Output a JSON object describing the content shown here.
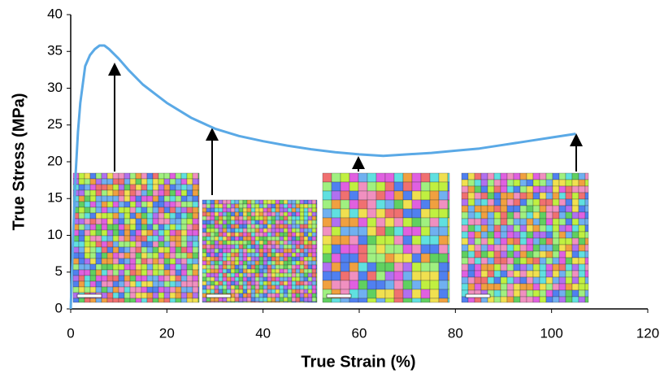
{
  "chart_data": {
    "type": "line",
    "x_label": "True Strain (%)",
    "y_label": "True Stress (MPa)",
    "x": [
      0,
      0.5,
      1,
      1.5,
      2,
      3,
      4,
      5,
      6,
      7,
      8,
      10,
      12,
      15,
      18,
      20,
      25,
      30,
      35,
      40,
      45,
      50,
      55,
      60,
      65,
      70,
      75,
      80,
      85,
      90,
      95,
      100,
      105
    ],
    "values": [
      0,
      10,
      18,
      24,
      28,
      33,
      34.5,
      35.3,
      35.8,
      35.8,
      35.3,
      34,
      32.5,
      30.5,
      29,
      28,
      26,
      24.5,
      23.5,
      22.8,
      22.2,
      21.7,
      21.3,
      21,
      20.8,
      21,
      21.2,
      21.5,
      21.8,
      22.3,
      22.8,
      23.3,
      23.8
    ],
    "color": "#5aa9e6",
    "xlim": [
      0,
      120
    ],
    "xticks": [
      0,
      20,
      40,
      60,
      80,
      100,
      120
    ],
    "ylim": [
      0,
      40
    ],
    "yticks": [
      0,
      5,
      10,
      15,
      20,
      25,
      30,
      35,
      40
    ],
    "grid": false
  }
}
